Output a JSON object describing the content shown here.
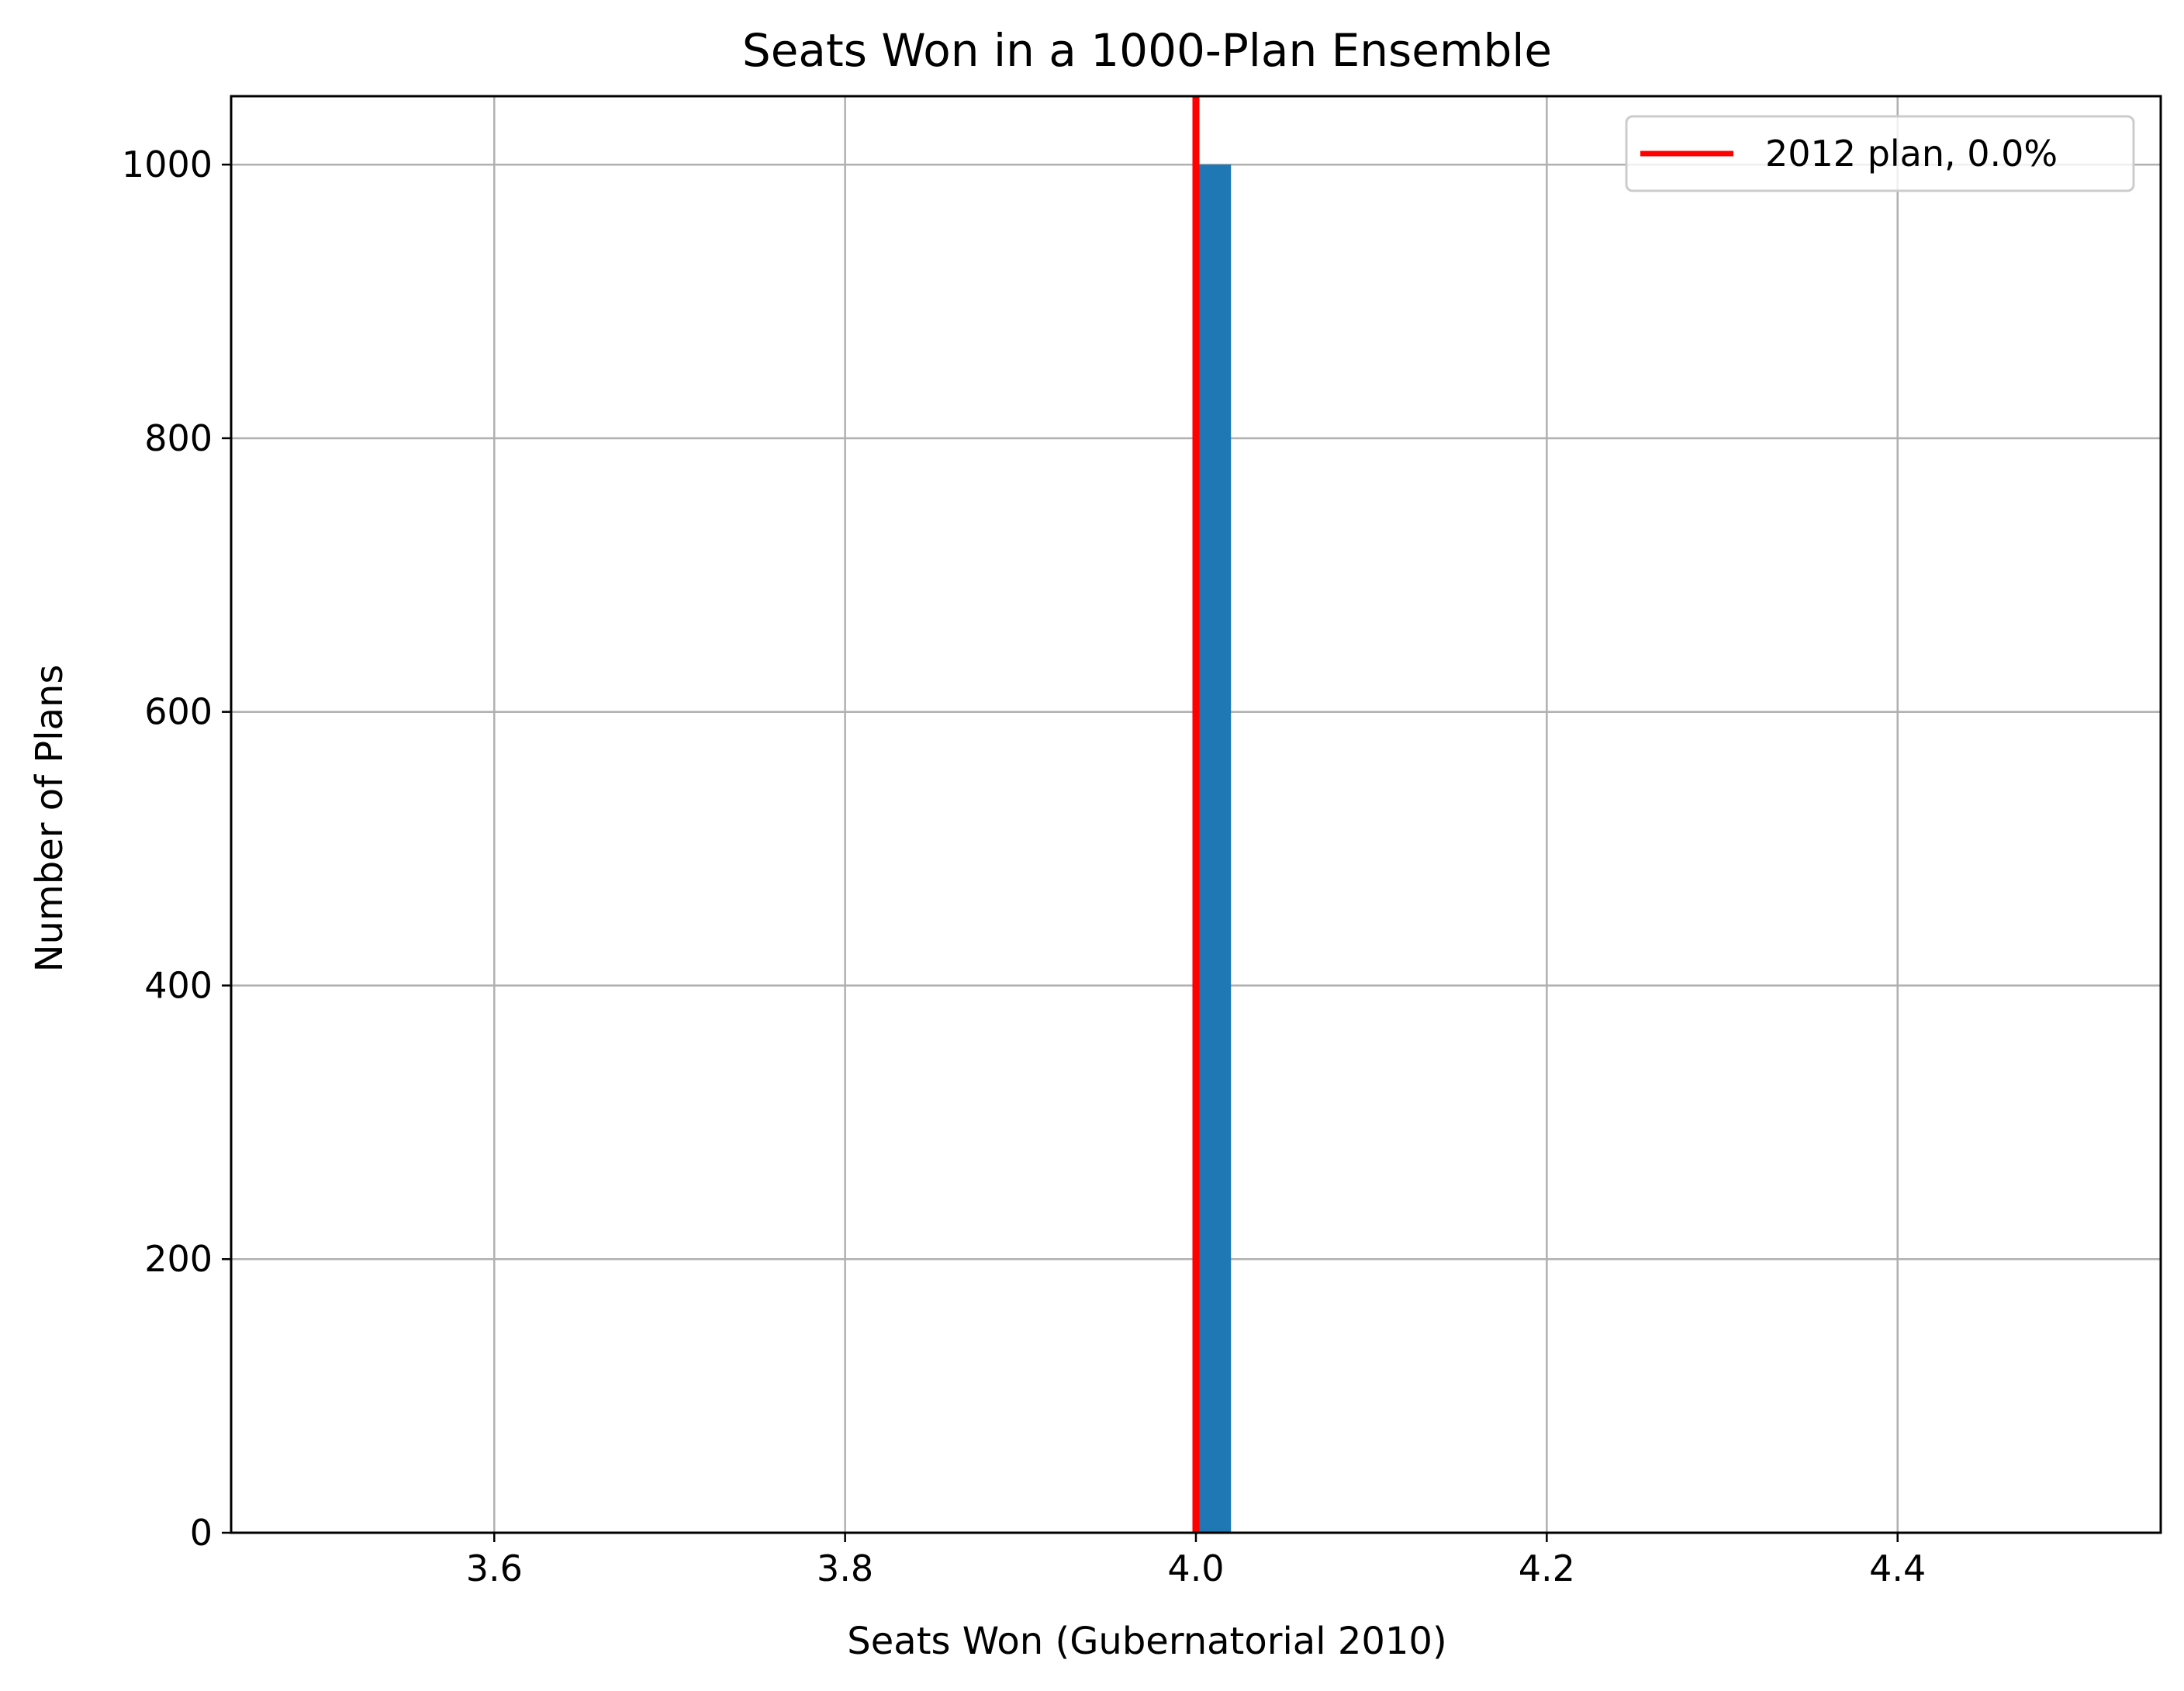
{
  "chart_data": {
    "type": "bar",
    "title": "Seats Won in a 1000-Plan Ensemble",
    "xlabel": "Seats Won (Gubernatorial 2010)",
    "ylabel": "Number of Plans",
    "xlim": [
      3.45,
      4.55
    ],
    "ylim": [
      0,
      1050
    ],
    "x_ticks": [
      3.6,
      3.8,
      4.0,
      4.2,
      4.4
    ],
    "x_tick_labels": [
      "3.6",
      "3.8",
      "4.0",
      "4.2",
      "4.4"
    ],
    "y_ticks": [
      0,
      200,
      400,
      600,
      800,
      1000
    ],
    "y_tick_labels": [
      "0",
      "200",
      "400",
      "600",
      "800",
      "1000"
    ],
    "grid": true,
    "legend_position": "top-right",
    "series": [
      {
        "kind": "histogram",
        "color": "#1f77b4",
        "bins": [
          {
            "x0": 4.0,
            "x1": 4.02,
            "value": 1000
          }
        ]
      },
      {
        "kind": "vline",
        "name": "2012 plan, 0.0%",
        "x": 4.0,
        "color": "#ff0000"
      }
    ]
  }
}
